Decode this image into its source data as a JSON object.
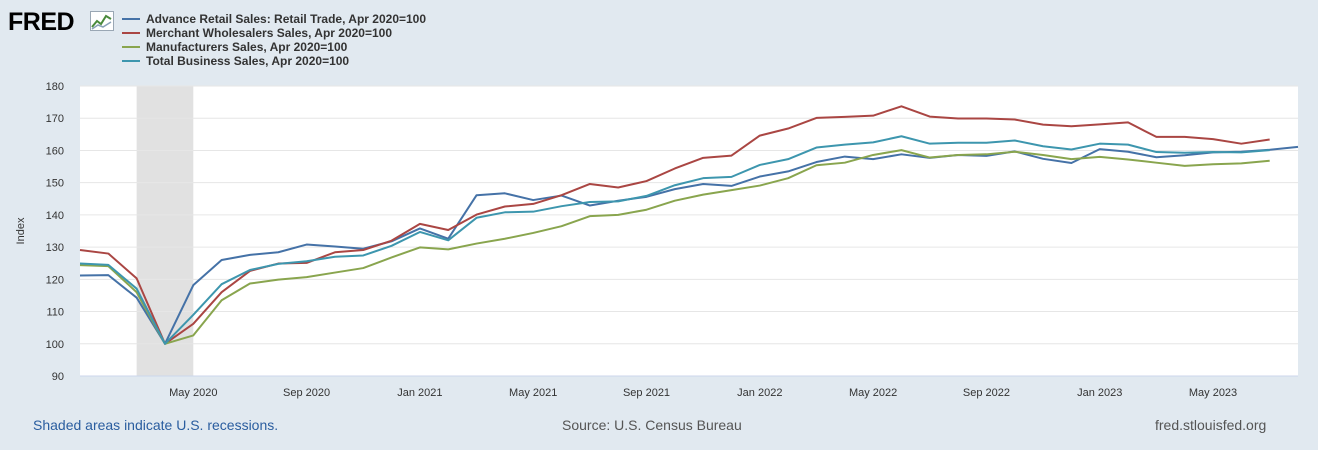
{
  "logo": {
    "text": "FRED"
  },
  "footer": {
    "recession_note": "Shaded areas indicate U.S. recessions.",
    "source": "Source: U.S. Census Bureau",
    "site": "fred.stlouisfed.org"
  },
  "chart_data": {
    "type": "line",
    "title": "",
    "xlabel": "",
    "ylabel": "Index",
    "ylim": [
      90,
      180
    ],
    "yticks": [
      90,
      100,
      110,
      120,
      130,
      140,
      150,
      160,
      170,
      180
    ],
    "grid": true,
    "legend_position": "top-left",
    "recession": {
      "start_index": 2,
      "end_index": 4
    },
    "x": [
      "2020-01",
      "2020-02",
      "2020-03",
      "2020-04",
      "2020-05",
      "2020-06",
      "2020-07",
      "2020-08",
      "2020-09",
      "2020-10",
      "2020-11",
      "2020-12",
      "2021-01",
      "2021-02",
      "2021-03",
      "2021-04",
      "2021-05",
      "2021-06",
      "2021-07",
      "2021-08",
      "2021-09",
      "2021-10",
      "2021-11",
      "2021-12",
      "2022-01",
      "2022-02",
      "2022-03",
      "2022-04",
      "2022-05",
      "2022-06",
      "2022-07",
      "2022-08",
      "2022-09",
      "2022-10",
      "2022-11",
      "2022-12",
      "2023-01",
      "2023-02",
      "2023-03",
      "2023-04",
      "2023-05",
      "2023-06",
      "2023-07",
      "2023-08"
    ],
    "x_tick_labels": [
      {
        "index": 4,
        "label": "May 2020"
      },
      {
        "index": 8,
        "label": "Sep 2020"
      },
      {
        "index": 12,
        "label": "Jan 2021"
      },
      {
        "index": 16,
        "label": "May 2021"
      },
      {
        "index": 20,
        "label": "Sep 2021"
      },
      {
        "index": 24,
        "label": "Jan 2022"
      },
      {
        "index": 28,
        "label": "May 2022"
      },
      {
        "index": 32,
        "label": "Sep 2022"
      },
      {
        "index": 36,
        "label": "Jan 2023"
      },
      {
        "index": 40,
        "label": "May 2023"
      }
    ],
    "series": [
      {
        "name": "Advance Retail Sales: Retail Trade, Apr 2020=100",
        "color": "#4572a7",
        "values": [
          121.2,
          121.3,
          114.3,
          100,
          118.2,
          126.0,
          127.6,
          128.4,
          130.8,
          130.2,
          129.5,
          131.8,
          135.8,
          132.6,
          146.1,
          146.7,
          144.6,
          146.0,
          142.9,
          144.4,
          145.6,
          148.0,
          149.6,
          149.0,
          151.9,
          153.5,
          156.4,
          158.1,
          157.3,
          158.8,
          157.7,
          158.6,
          158.3,
          159.7,
          157.4,
          156.1,
          160.4,
          159.6,
          157.9,
          158.5,
          159.4,
          159.6,
          160.2,
          161.1
        ]
      },
      {
        "name": "Merchant Wholesalers Sales, Apr 2020=100",
        "color": "#aa4643",
        "values": [
          129.1,
          128.0,
          120.3,
          100,
          106.2,
          116.0,
          122.6,
          124.9,
          125.1,
          128.4,
          129.1,
          132.0,
          137.2,
          135.3,
          140.1,
          142.6,
          143.4,
          146.1,
          149.6,
          148.5,
          150.5,
          154.4,
          157.7,
          158.4,
          164.6,
          166.8,
          170.1,
          170.4,
          170.8,
          173.7,
          170.5,
          169.9,
          169.9,
          169.6,
          168.0,
          167.5,
          168.1,
          168.7,
          164.2,
          164.2,
          163.5,
          162.1,
          163.4,
          null
        ]
      },
      {
        "name": "Manufacturers Sales, Apr 2020=100",
        "color": "#89a54e",
        "values": [
          124.4,
          124.1,
          116.0,
          100,
          102.6,
          113.5,
          118.7,
          119.9,
          120.7,
          122.1,
          123.5,
          126.8,
          129.9,
          129.3,
          131.1,
          132.6,
          134.4,
          136.5,
          139.6,
          140.0,
          141.6,
          144.4,
          146.3,
          147.7,
          149.1,
          151.4,
          155.4,
          156.2,
          158.6,
          160.1,
          157.8,
          158.6,
          158.8,
          159.6,
          158.6,
          157.3,
          158.0,
          157.2,
          156.2,
          155.2,
          155.7,
          156.0,
          156.8,
          null
        ]
      },
      {
        "name": "Total Business Sales, Apr 2020=100",
        "color": "#3d96ae",
        "values": [
          124.9,
          124.5,
          117.1,
          100,
          109.0,
          118.5,
          122.9,
          124.8,
          125.6,
          127.0,
          127.4,
          130.4,
          134.7,
          132.1,
          139.1,
          140.8,
          141.0,
          142.7,
          144.0,
          144.2,
          145.9,
          149.2,
          151.4,
          151.8,
          155.5,
          157.3,
          160.9,
          161.8,
          162.5,
          164.4,
          162.1,
          162.4,
          162.4,
          163.1,
          161.3,
          160.3,
          162.1,
          161.8,
          159.5,
          159.3,
          159.5,
          159.4,
          160.1,
          null
        ]
      }
    ]
  }
}
